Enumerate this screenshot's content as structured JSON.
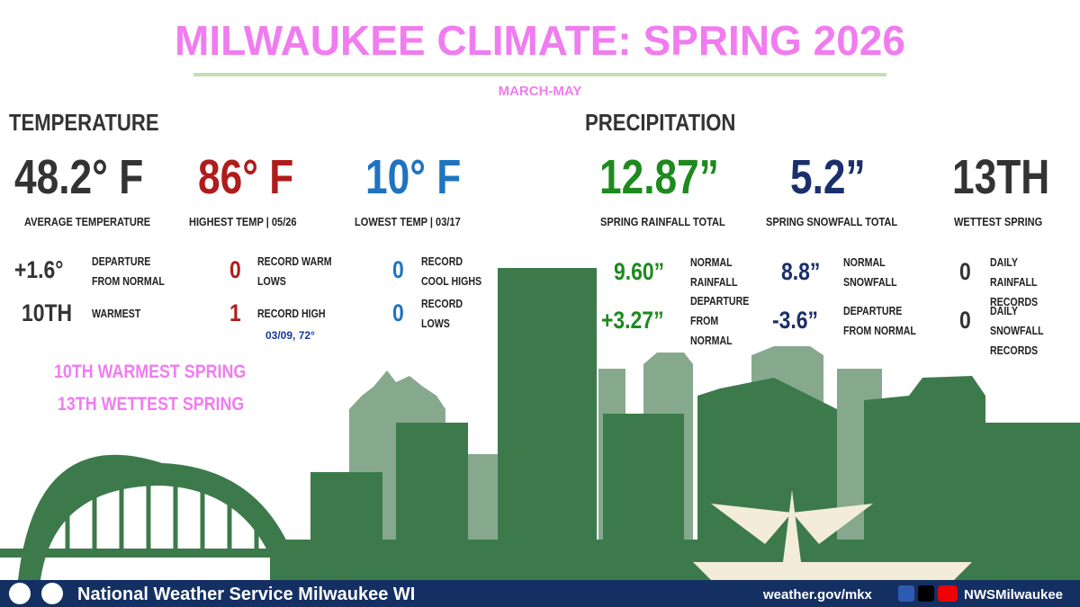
{
  "header": {
    "title": "MILWAUKEE CLIMATE: SPRING 2026",
    "subtitle": "MARCH-MAY"
  },
  "temperature": {
    "heading": "TEMPERATURE",
    "stats": [
      {
        "value": "48.2° F",
        "label": "AVERAGE TEMPERATURE"
      },
      {
        "value": "86° F",
        "label": "HIGHEST TEMP | 05/26"
      },
      {
        "value": "10° F",
        "label": "LOWEST TEMP | 03/17"
      }
    ],
    "details": [
      {
        "value": "+1.6°",
        "label": "DEPARTURE FROM NORMAL"
      },
      {
        "value": "10TH",
        "label": "WARMEST"
      },
      {
        "value": "0",
        "label": "RECORD WARM LOWS"
      },
      {
        "value": "1",
        "label": "RECORD HIGH",
        "note": "03/09, 72°"
      },
      {
        "value": "0",
        "label": "RECORD COOL HIGHS"
      },
      {
        "value": "0",
        "label": "RECORD LOWS"
      }
    ],
    "highlights": [
      "10TH WARMEST SPRING",
      "13TH WETTEST SPRING"
    ]
  },
  "precipitation": {
    "heading": "PRECIPITATION",
    "stats": [
      {
        "value": "12.87”",
        "label": "SPRING RAINFALL TOTAL"
      },
      {
        "value": "5.2”",
        "label": "SPRING SNOWFALL TOTAL"
      },
      {
        "value": "13TH",
        "label": "WETTEST SPRING"
      }
    ],
    "details": [
      {
        "value": "9.60”",
        "label": "NORMAL RAINFALL"
      },
      {
        "value": "+3.27”",
        "label": "DEPARTURE FROM NORMAL"
      },
      {
        "value": "8.8”",
        "label": "NORMAL SNOWFALL"
      },
      {
        "value": "-3.6”",
        "label": "DEPARTURE FROM NORMAL"
      },
      {
        "value": "0",
        "label": "DAILY RAINFALL RECORDS"
      },
      {
        "value": "0",
        "label": "DAILY SNOWFALL RECORDS"
      }
    ]
  },
  "footer": {
    "office": "National Weather Service Milwaukee WI",
    "website": "weather.gov/mkx",
    "handle": "NWSMilwaukee"
  }
}
